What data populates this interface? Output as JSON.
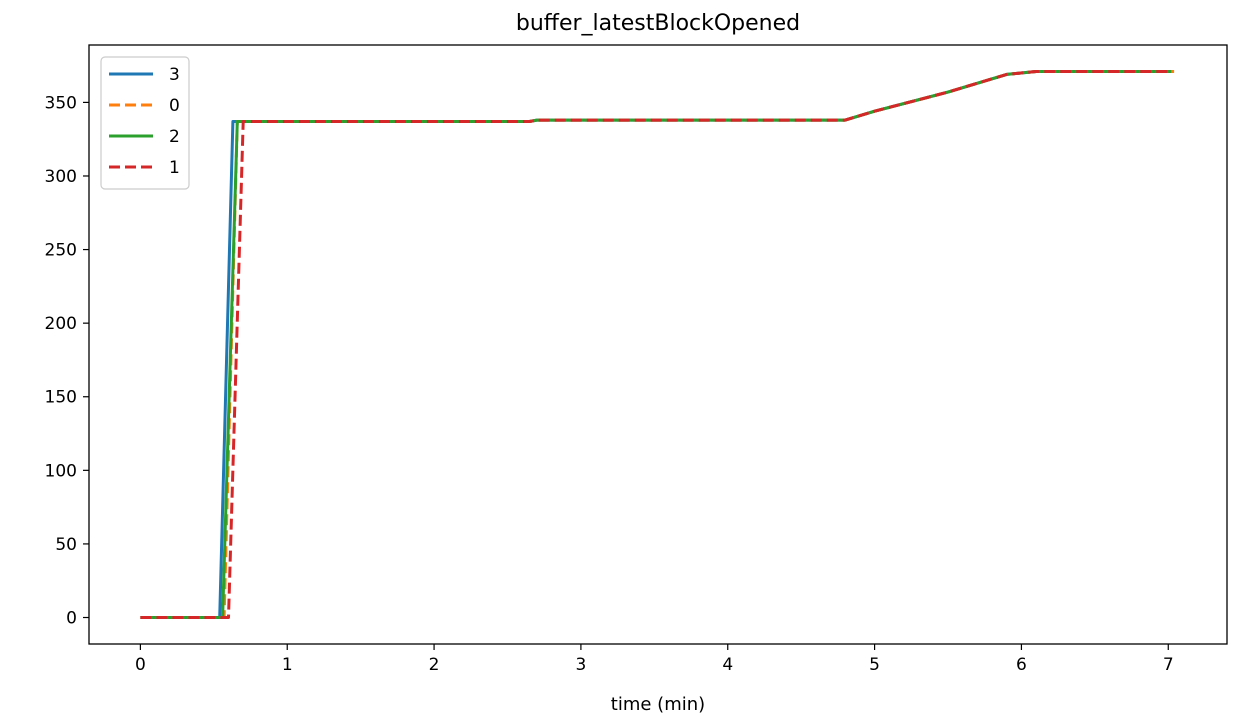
{
  "chart_data": {
    "type": "line",
    "title": "buffer_latestBlockOpened",
    "xlabel": "time (min)",
    "ylabel": "",
    "xlim": [
      -0.35,
      7.4
    ],
    "ylim": [
      -18,
      389
    ],
    "xticks": [
      0,
      1,
      2,
      3,
      4,
      5,
      6,
      7
    ],
    "yticks": [
      0,
      50,
      100,
      150,
      200,
      250,
      300,
      350
    ],
    "grid": false,
    "legend_position": "top-left",
    "series": [
      {
        "name": "3",
        "color": "#1f77b4",
        "dash": "solid",
        "x": [
          0,
          0.54,
          0.63,
          2.65,
          2.7,
          4.8,
          5.0,
          5.5,
          5.9,
          6.1,
          7.0
        ],
        "y": [
          0,
          0,
          337,
          337,
          338,
          338,
          344,
          357,
          369,
          371,
          371
        ]
      },
      {
        "name": "0",
        "color": "#ff7f0e",
        "dash": "dashed",
        "x": [
          0,
          0.57,
          0.66,
          2.65,
          2.7,
          4.8,
          5.0,
          5.5,
          5.9,
          6.1,
          7.04
        ],
        "y": [
          0,
          0,
          337,
          337,
          338,
          338,
          344,
          357,
          369,
          371,
          371
        ]
      },
      {
        "name": "2",
        "color": "#2ca02c",
        "dash": "solid",
        "x": [
          0,
          0.56,
          0.66,
          2.65,
          2.7,
          4.8,
          5.0,
          5.5,
          5.9,
          6.1,
          7.02
        ],
        "y": [
          0,
          0,
          337,
          337,
          338,
          338,
          344,
          357,
          369,
          371,
          371
        ]
      },
      {
        "name": "1",
        "color": "#d62728",
        "dash": "dashed",
        "x": [
          0,
          0.6,
          0.7,
          2.65,
          2.7,
          4.8,
          5.0,
          5.5,
          5.9,
          6.1,
          7.02
        ],
        "y": [
          0,
          0,
          337,
          337,
          338,
          338,
          344,
          357,
          369,
          371,
          371
        ]
      }
    ]
  }
}
